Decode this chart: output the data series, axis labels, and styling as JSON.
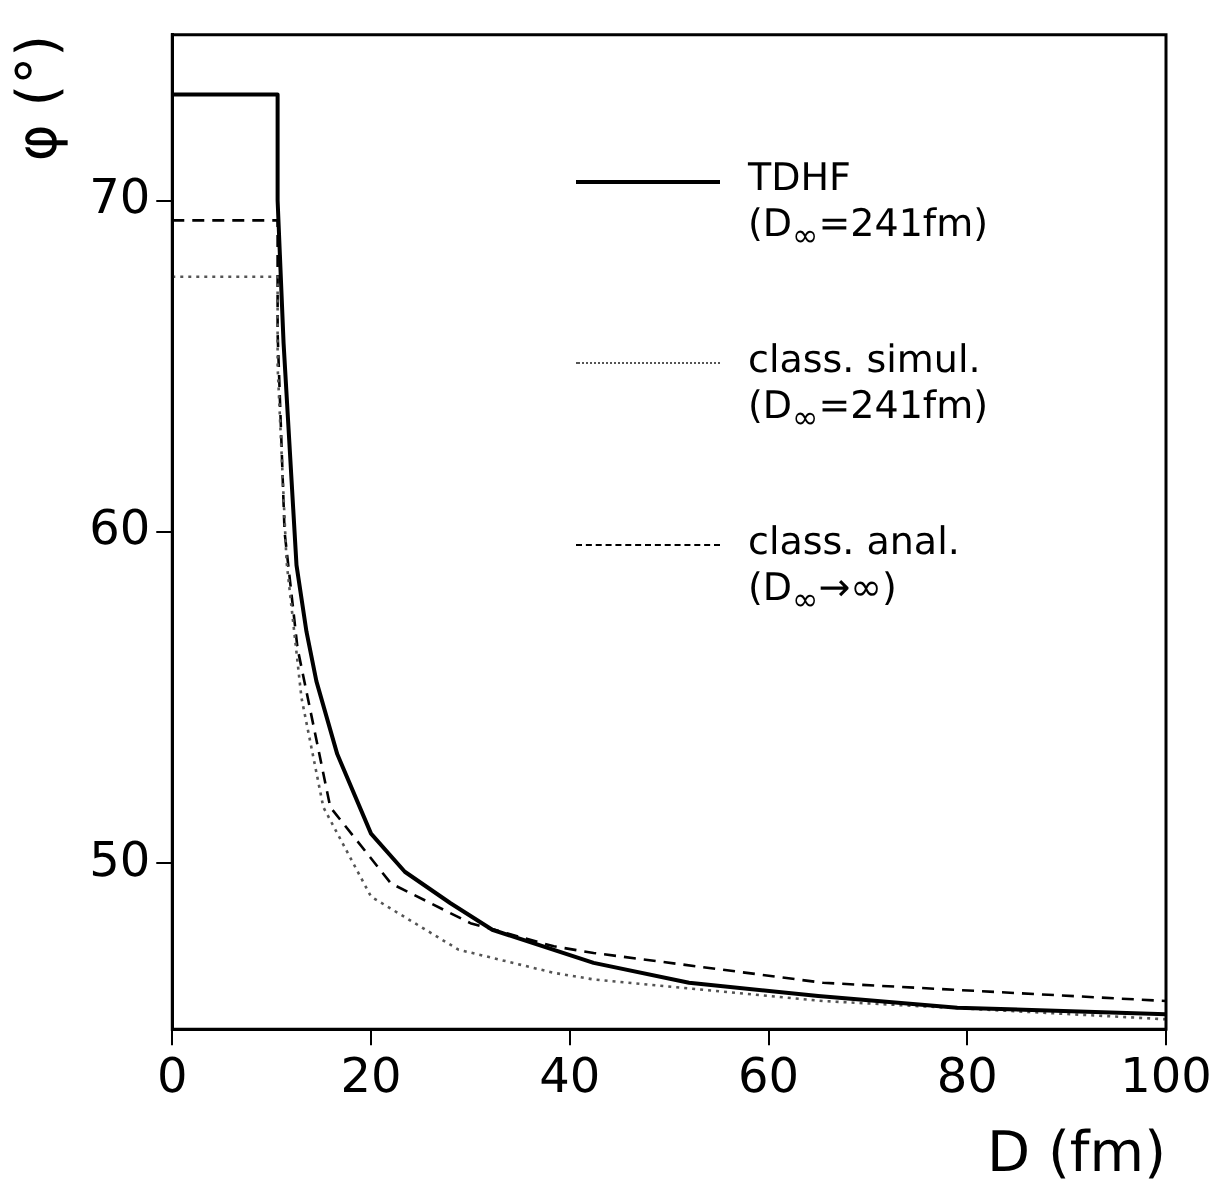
{
  "chart_data": {
    "type": "line",
    "xlabel": "D (fm)",
    "ylabel": "φ (°)",
    "xlim": [
      0,
      100
    ],
    "ylim": [
      45,
      75
    ],
    "xticks": [
      0,
      20,
      40,
      60,
      80,
      100
    ],
    "yticks": [
      50,
      60,
      70
    ],
    "grid": false,
    "legend": "top right",
    "marker": "none",
    "series": [
      {
        "name": "TDHF (D$_{∞}$=241fm)",
        "color": "#000000",
        "line_style": "solid",
        "x": [
          0,
          10.6,
          10.6,
          11.2,
          12.5,
          13.5,
          14.5,
          16.6,
          20,
          23.4,
          28,
          32.2,
          42.4,
          52,
          65,
          79,
          100
        ],
        "values": [
          73.2,
          73.2,
          70,
          65.7,
          59,
          57,
          55.5,
          53.3,
          50.9,
          49.75,
          48.8,
          48,
          47,
          46.4,
          46,
          45.65,
          45.45
        ]
      },
      {
        "name": "class. simul. (D$_{∞}$=241fm)",
        "color": "#555555",
        "line_style": "dotted",
        "x": [
          0,
          10.6,
          10.6,
          11.5,
          13,
          15.2,
          20,
          28.8,
          38.4,
          42.4,
          65.5,
          100
        ],
        "values": [
          67.7,
          67.7,
          65,
          59.1,
          55,
          51.7,
          49,
          47.4,
          46.7,
          46.5,
          45.85,
          45.3
        ]
      },
      {
        "name": "class. anal. (D$_{∞}$→∞)",
        "color": "#000000",
        "line_style": "dashed",
        "x": [
          0,
          10.6,
          10.6,
          11.3,
          12.6,
          15.9,
          22,
          30,
          38.4,
          42.4,
          65.5,
          100
        ],
        "values": [
          69.4,
          69.4,
          66,
          60,
          56.5,
          51.7,
          49.4,
          48.2,
          47.5,
          47.3,
          46.4,
          45.85
        ]
      }
    ]
  }
}
